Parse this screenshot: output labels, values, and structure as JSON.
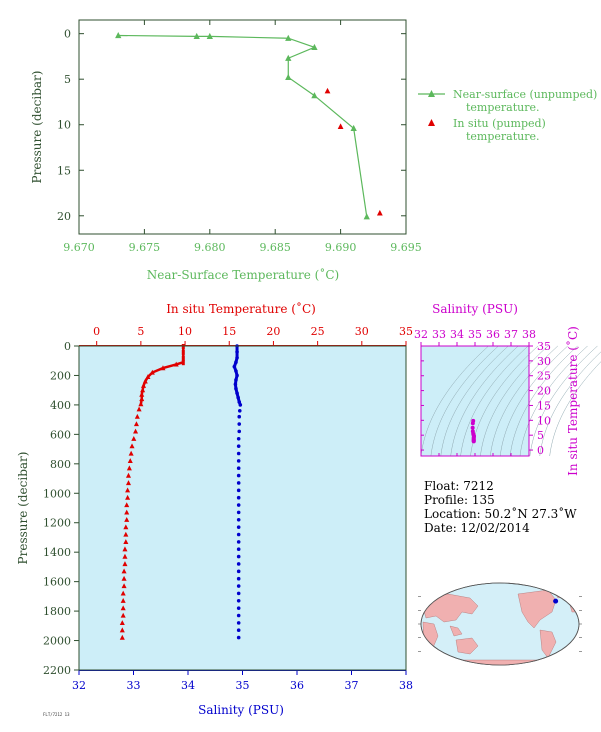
{
  "colors": {
    "axis_dark": "#2f4f2f",
    "nearsurface": "#5cb85c",
    "insitu": "#e00000",
    "salinity": "#0000cc",
    "panel_bg": "#cdeef8",
    "magenta": "#cc00cc",
    "land": "#f0b0b0",
    "ocean": "#d4eff8"
  },
  "chart_data": [
    {
      "type": "line",
      "xlabel": "Near-Surface Temperature (˚C)",
      "ylabel": "Pressure (decibar)",
      "xlim": [
        9.67,
        9.695
      ],
      "ylim": [
        22,
        -1.5
      ],
      "xticks": [
        "9.670",
        "9.675",
        "9.680",
        "9.685",
        "9.690",
        "9.695"
      ],
      "yticks": [
        "0",
        "5",
        "10",
        "15",
        "20"
      ],
      "legend_position": "right",
      "series": [
        {
          "name": "Near-surface (unpumped) temperature.",
          "marker": "triangle-line",
          "points": [
            [
              9.673,
              0.2
            ],
            [
              9.679,
              0.3
            ],
            [
              9.68,
              0.3
            ],
            [
              9.686,
              0.5
            ],
            [
              9.688,
              1.5
            ],
            [
              9.686,
              2.7
            ],
            [
              9.686,
              4.8
            ],
            [
              9.688,
              6.8
            ],
            [
              9.691,
              10.4
            ],
            [
              9.692,
              20.1
            ]
          ]
        },
        {
          "name": "In situ (pumped) temperature.",
          "marker": "triangle",
          "points": [
            [
              9.689,
              6.3
            ],
            [
              9.69,
              10.2
            ],
            [
              9.693,
              19.7
            ]
          ]
        }
      ]
    },
    {
      "type": "scatter",
      "top_xlabel": "In situ Temperature (˚C)",
      "bottom_xlabel": "Salinity (PSU)",
      "ylabel": "Pressure (decibar)",
      "temp_xlim": [
        -2,
        35
      ],
      "sal_xlim": [
        32,
        38
      ],
      "ylim": [
        0,
        2200
      ],
      "temp_ticks": [
        "0",
        "5",
        "10",
        "15",
        "20",
        "25",
        "30",
        "35"
      ],
      "sal_ticks": [
        "32",
        "33",
        "34",
        "35",
        "36",
        "37",
        "38"
      ],
      "yticks": [
        "0",
        "200",
        "400",
        "600",
        "800",
        "1000",
        "1200",
        "1400",
        "1600",
        "1800",
        "2000",
        "2200"
      ],
      "temperature_profile": [
        [
          9.8,
          0
        ],
        [
          9.8,
          40
        ],
        [
          9.8,
          80
        ],
        [
          9.8,
          110
        ],
        [
          9.0,
          125
        ],
        [
          7.5,
          150
        ],
        [
          6.3,
          180
        ],
        [
          5.8,
          210
        ],
        [
          5.5,
          240
        ],
        [
          5.3,
          270
        ],
        [
          5.2,
          300
        ],
        [
          5.1,
          330
        ],
        [
          5.1,
          360
        ],
        [
          5.0,
          395
        ],
        [
          4.8,
          430
        ],
        [
          4.6,
          480
        ],
        [
          4.5,
          530
        ],
        [
          4.4,
          580
        ],
        [
          4.2,
          630
        ],
        [
          4.0,
          680
        ],
        [
          3.9,
          730
        ],
        [
          3.8,
          780
        ],
        [
          3.7,
          830
        ],
        [
          3.6,
          880
        ],
        [
          3.6,
          930
        ],
        [
          3.5,
          980
        ],
        [
          3.5,
          1030
        ],
        [
          3.4,
          1080
        ],
        [
          3.4,
          1130
        ],
        [
          3.4,
          1180
        ],
        [
          3.3,
          1230
        ],
        [
          3.3,
          1280
        ],
        [
          3.3,
          1330
        ],
        [
          3.2,
          1380
        ],
        [
          3.2,
          1430
        ],
        [
          3.2,
          1480
        ],
        [
          3.1,
          1530
        ],
        [
          3.1,
          1580
        ],
        [
          3.1,
          1630
        ],
        [
          3.0,
          1680
        ],
        [
          3.0,
          1730
        ],
        [
          3.0,
          1780
        ],
        [
          3.0,
          1830
        ],
        [
          2.9,
          1880
        ],
        [
          2.9,
          1930
        ],
        [
          2.9,
          1980
        ]
      ],
      "salinity_profile": [
        [
          34.9,
          0
        ],
        [
          34.9,
          40
        ],
        [
          34.9,
          80
        ],
        [
          34.88,
          110
        ],
        [
          34.85,
          140
        ],
        [
          34.88,
          170
        ],
        [
          34.9,
          200
        ],
        [
          34.88,
          230
        ],
        [
          34.87,
          260
        ],
        [
          34.88,
          290
        ],
        [
          34.9,
          320
        ],
        [
          34.92,
          350
        ],
        [
          34.94,
          380
        ],
        [
          34.96,
          400
        ],
        [
          34.95,
          440
        ],
        [
          34.94,
          480
        ],
        [
          34.94,
          530
        ],
        [
          34.94,
          580
        ],
        [
          34.93,
          630
        ],
        [
          34.93,
          680
        ],
        [
          34.93,
          730
        ],
        [
          34.93,
          780
        ],
        [
          34.93,
          830
        ],
        [
          34.93,
          880
        ],
        [
          34.93,
          930
        ],
        [
          34.93,
          980
        ],
        [
          34.93,
          1030
        ],
        [
          34.93,
          1080
        ],
        [
          34.93,
          1130
        ],
        [
          34.93,
          1180
        ],
        [
          34.93,
          1230
        ],
        [
          34.93,
          1280
        ],
        [
          34.93,
          1330
        ],
        [
          34.93,
          1380
        ],
        [
          34.93,
          1430
        ],
        [
          34.93,
          1480
        ],
        [
          34.93,
          1530
        ],
        [
          34.93,
          1580
        ],
        [
          34.93,
          1630
        ],
        [
          34.93,
          1680
        ],
        [
          34.93,
          1730
        ],
        [
          34.93,
          1780
        ],
        [
          34.93,
          1830
        ],
        [
          34.93,
          1880
        ],
        [
          34.93,
          1930
        ],
        [
          34.93,
          1980
        ]
      ]
    },
    {
      "type": "scatter",
      "xlabel": "Salinity (PSU)",
      "ylabel": "In situ Temperature (˚C)",
      "xlim": [
        32,
        38
      ],
      "ylim": [
        -2,
        35
      ],
      "xticks": [
        "32",
        "33",
        "34",
        "35",
        "36",
        "37",
        "38"
      ],
      "yticks": [
        "0",
        "5",
        "10",
        "15",
        "20",
        "25",
        "30",
        "35"
      ],
      "points": [
        [
          34.9,
          9.8
        ],
        [
          34.88,
          9.0
        ],
        [
          34.87,
          7.5
        ],
        [
          34.88,
          6.3
        ],
        [
          34.9,
          5.5
        ],
        [
          34.92,
          5.1
        ],
        [
          34.94,
          4.8
        ],
        [
          34.94,
          4.5
        ],
        [
          34.93,
          4.2
        ],
        [
          34.93,
          3.9
        ],
        [
          34.93,
          3.6
        ],
        [
          34.93,
          3.4
        ],
        [
          34.93,
          3.2
        ],
        [
          34.93,
          3.0
        ],
        [
          34.93,
          2.9
        ]
      ]
    }
  ],
  "info": {
    "float": "Float:  7212",
    "profile": "Profile:  135",
    "location": "Location:  50.2˚N  27.3˚W",
    "date": "Date:  12/02/2014"
  },
  "footer": {
    "code": "FLT/7212 13"
  },
  "map": {
    "float_lat": 50.2,
    "float_lon": -27.3
  }
}
